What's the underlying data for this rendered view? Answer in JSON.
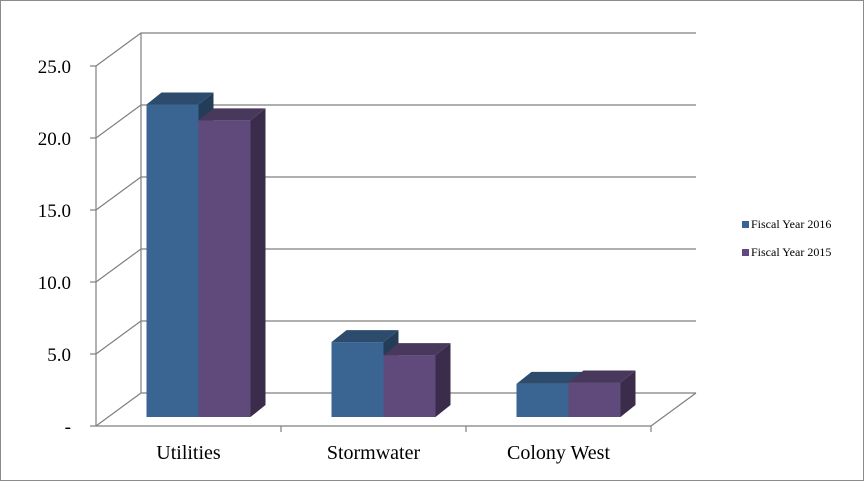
{
  "chart_data": {
    "type": "bar",
    "style": "3d-clustered-column",
    "categories": [
      "Utilities",
      "Stormwater",
      "Colony West"
    ],
    "series": [
      {
        "name": "Fiscal Year 2016",
        "values": [
          21.7,
          5.2,
          2.3
        ],
        "color": "#3A6491"
      },
      {
        "name": "Fiscal Year 2015",
        "values": [
          20.6,
          4.3,
          2.4
        ],
        "color": "#604A7B"
      }
    ],
    "ylim": [
      0,
      25
    ],
    "yticks": [
      0,
      5,
      10,
      15,
      20,
      25
    ],
    "ytick_labels": [
      "-",
      "5.0",
      "10.0",
      "15.0",
      "20.0",
      "25.0"
    ],
    "grid": true,
    "legend_position": "right",
    "title": "",
    "xlabel": "",
    "ylabel": ""
  }
}
